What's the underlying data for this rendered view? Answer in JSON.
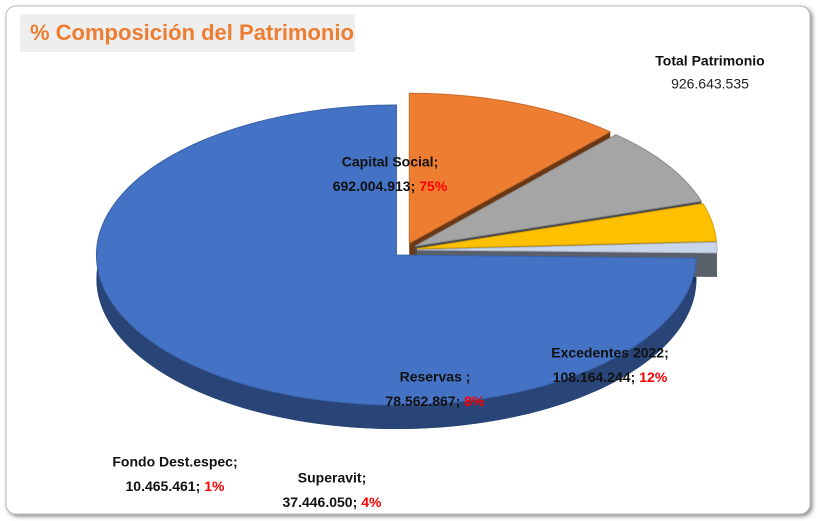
{
  "chart_data": {
    "type": "pie",
    "title": "% Composición del Patrimonio",
    "total": {
      "label": "Total Patrimonio",
      "value": 926643535,
      "value_label": "926.643.535"
    },
    "categories": [
      "Capital Social;",
      "Excedentes 2022;",
      "Reservas ;",
      "Superavit;",
      "Fondo Dest.espec;"
    ],
    "values": [
      692004913,
      108164244,
      78562867,
      37446050,
      10465461
    ],
    "value_labels": [
      "692.004.913;",
      "108.164.244;",
      "78.562.867;",
      "37.446.050;",
      "10.465.461;"
    ],
    "percentages": [
      75,
      12,
      8,
      4,
      1
    ],
    "percentage_labels": [
      "75%",
      "12%",
      "8%",
      "4%",
      "1%"
    ],
    "colors": [
      "#4472c4",
      "#ed7d31",
      "#a5a5a5",
      "#ffc000",
      "#c9d6ea"
    ]
  }
}
